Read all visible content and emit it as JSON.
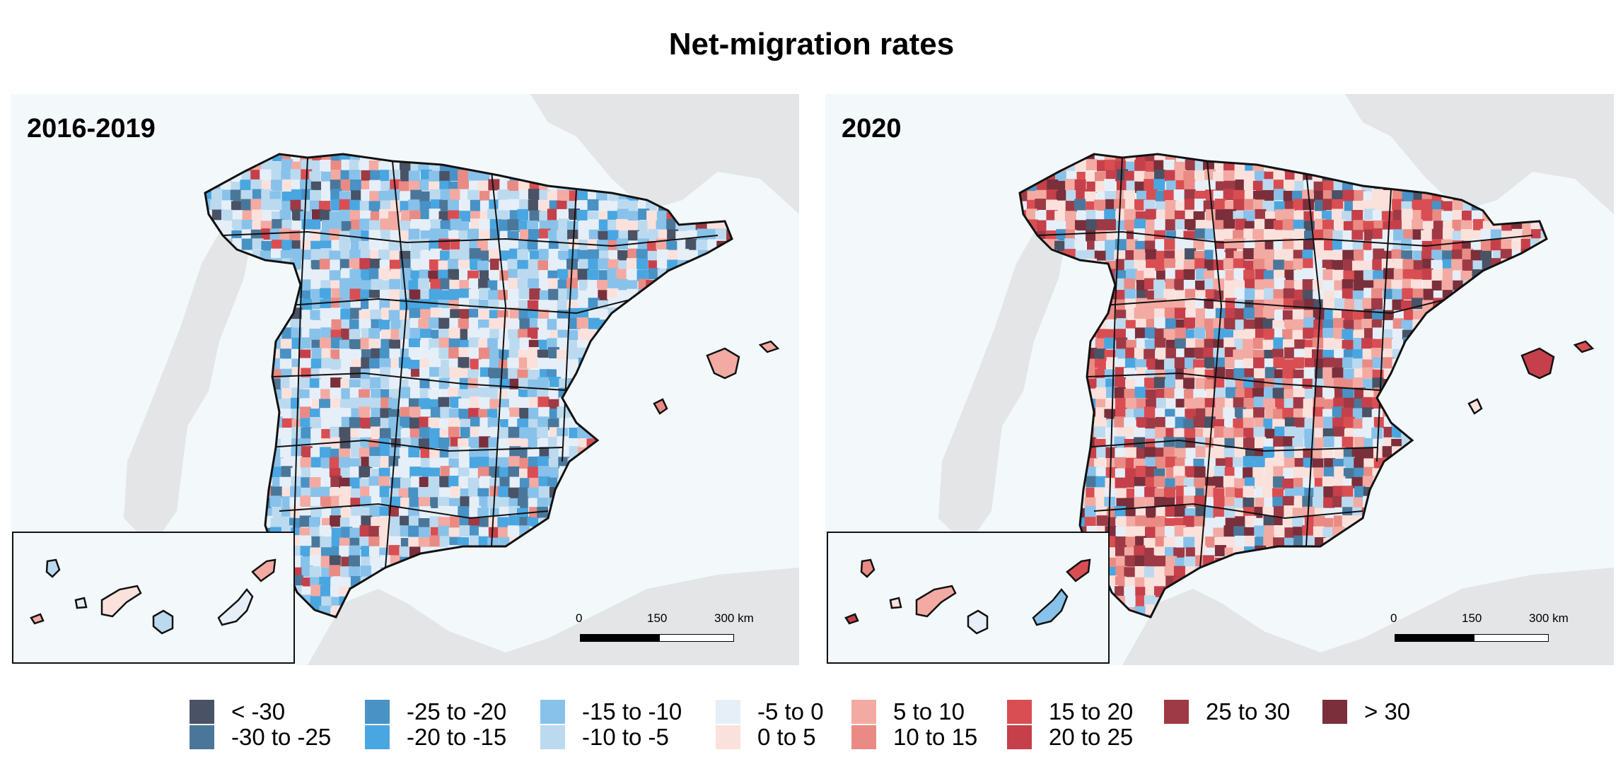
{
  "title": "Net-migration rates",
  "panels": [
    {
      "label": "2016-2019",
      "palette_bias": "cool"
    },
    {
      "label": "2020",
      "palette_bias": "warm"
    }
  ],
  "scale": {
    "ticks": [
      "0",
      "150",
      "300 km"
    ]
  },
  "legend": [
    {
      "label": "< -30",
      "color": "#4a5266"
    },
    {
      "label": "-30 to -25",
      "color": "#4a7799"
    },
    {
      "label": "-25 to -20",
      "color": "#4892c6"
    },
    {
      "label": "-20 to -15",
      "color": "#4aa6e0"
    },
    {
      "label": "-15 to -10",
      "color": "#88c2ea"
    },
    {
      "label": "-10 to -5",
      "color": "#bcdaef"
    },
    {
      "label": "-5 to 0",
      "color": "#e6eff8"
    },
    {
      "label": "0 to 5",
      "color": "#fbe1dc"
    },
    {
      "label": "5 to 10",
      "color": "#f3aaa2"
    },
    {
      "label": "10 to 15",
      "color": "#e98b84"
    },
    {
      "label": "15 to 20",
      "color": "#d94e52"
    },
    {
      "label": "20 to 25",
      "color": "#c5404a"
    },
    {
      "label": "25 to 30",
      "color": "#9e3a45"
    },
    {
      "label": "> 30",
      "color": "#7a2f3b"
    }
  ],
  "colors": {
    "sea": "#f3f8fb",
    "land_other": "#e3e5e6",
    "border": "#111111"
  }
}
